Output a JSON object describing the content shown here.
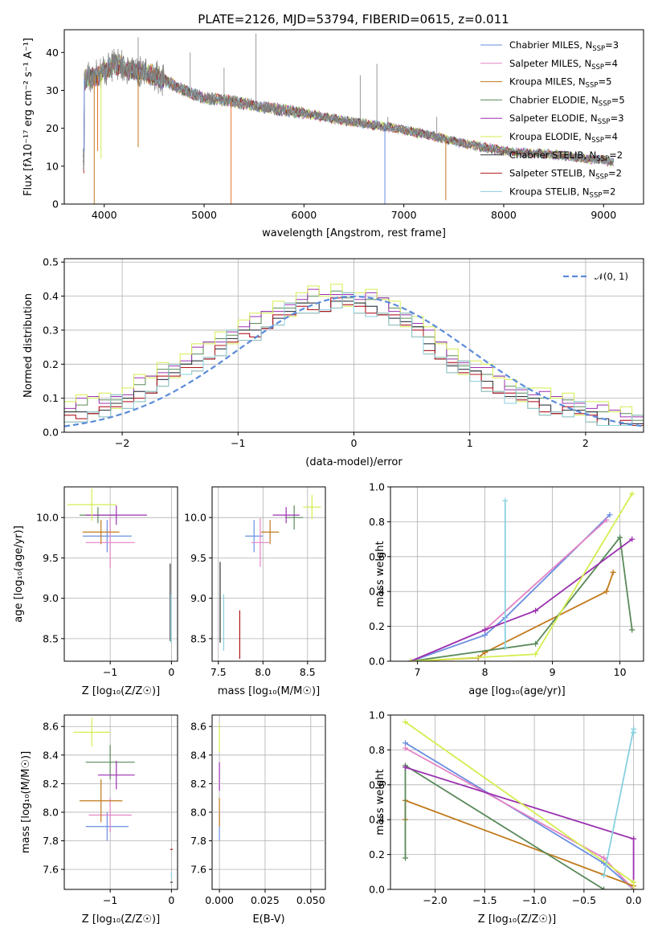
{
  "figure_title": "PLATE=2126, MJD=53794, FIBERID=0615, z=0.011",
  "chart_data": [
    {
      "id": "spectrum",
      "type": "line",
      "xlabel": "wavelength [Angstrom, rest frame]",
      "ylabel": "Flux [fλ10⁻¹⁷ erg cm⁻² s⁻¹ A⁻¹]",
      "xlim": [
        3600,
        9400
      ],
      "ylim": [
        0,
        46
      ],
      "xticks": [
        4000,
        5000,
        6000,
        7000,
        8000,
        9000
      ],
      "yticks": [
        0,
        10,
        20,
        30,
        40
      ],
      "legend_position": "top-right",
      "legend": [
        {
          "label": "Chabrier MILES, N",
          "sub": "SSP",
          "tail": "=3",
          "color": "#6a8fe0"
        },
        {
          "label": "Salpeter MILES, N",
          "sub": "SSP",
          "tail": "=4",
          "color": "#e483c5"
        },
        {
          "label": "Kroupa MILES, N",
          "sub": "SSP",
          "tail": "=5",
          "color": "#c07a1c"
        },
        {
          "label": "Chabrier ELODIE, N",
          "sub": "SSP",
          "tail": "=5",
          "color": "#5a8a5a"
        },
        {
          "label": "Salpeter ELODIE, N",
          "sub": "SSP",
          "tail": "=3",
          "color": "#9b30b0"
        },
        {
          "label": "Kroupa ELODIE, N",
          "sub": "SSP",
          "tail": "=4",
          "color": "#d4ee50"
        },
        {
          "label": "Chabrier STELIB, N",
          "sub": "SSP",
          "tail": "=2",
          "color": "#333333"
        },
        {
          "label": "Salpeter STELIB, N",
          "sub": "SSP",
          "tail": "=2",
          "color": "#b01515"
        },
        {
          "label": "Kroupa STELIB, N",
          "sub": "SSP",
          "tail": "=2",
          "color": "#88d0e0"
        }
      ],
      "continuum": [
        [
          3800,
          33
        ],
        [
          3950,
          34
        ],
        [
          4100,
          37
        ],
        [
          4300,
          35
        ],
        [
          4500,
          34
        ],
        [
          4800,
          30
        ],
        [
          5000,
          28
        ],
        [
          5300,
          27
        ],
        [
          5600,
          25.5
        ],
        [
          6000,
          24
        ],
        [
          6400,
          22
        ],
        [
          6800,
          20.5
        ],
        [
          7200,
          18.5
        ],
        [
          7600,
          16
        ],
        [
          8000,
          14
        ],
        [
          8500,
          13
        ],
        [
          9000,
          11.5
        ],
        [
          9100,
          11
        ]
      ],
      "emission_lines": [
        [
          4340,
          44
        ],
        [
          4861,
          40
        ],
        [
          5200,
          36
        ],
        [
          5520,
          45
        ],
        [
          6563,
          34
        ],
        [
          6730,
          37
        ],
        [
          6840,
          23
        ],
        [
          7330,
          23
        ]
      ],
      "absorption_lines": [
        [
          3800,
          14
        ],
        [
          3900,
          0
        ],
        [
          3934,
          14
        ],
        [
          3968,
          12
        ],
        [
          4340,
          15
        ],
        [
          5270,
          0
        ],
        [
          6810,
          0
        ],
        [
          7420,
          1
        ]
      ]
    },
    {
      "id": "residuals",
      "type": "line",
      "xlabel": "(data-model)/error",
      "ylabel": "Normed distribution",
      "xlim": [
        -2.5,
        2.5
      ],
      "ylim": [
        0,
        0.51
      ],
      "xticks": [
        -2,
        -1,
        0,
        1,
        2
      ],
      "yticks": [
        0.0,
        0.1,
        0.2,
        0.3,
        0.4,
        0.5
      ],
      "legend_position": "top-right",
      "gaussian_label": "𝒩(0, 1)",
      "gaussian": {
        "mu": 0,
        "sigma": 1,
        "color": "#5b8bd9"
      },
      "hist_x": [
        -2.5,
        -2.4,
        -2.3,
        -2.2,
        -2.1,
        -2.0,
        -1.9,
        -1.8,
        -1.7,
        -1.6,
        -1.5,
        -1.4,
        -1.3,
        -1.2,
        -1.1,
        -1.0,
        -0.9,
        -0.8,
        -0.7,
        -0.6,
        -0.5,
        -0.4,
        -0.3,
        -0.2,
        -0.1,
        0.0,
        0.1,
        0.2,
        0.3,
        0.4,
        0.5,
        0.6,
        0.7,
        0.8,
        0.9,
        1.0,
        1.1,
        1.2,
        1.3,
        1.4,
        1.5,
        1.6,
        1.7,
        1.8,
        1.9,
        2.0,
        2.1,
        2.2,
        2.3,
        2.4
      ],
      "hist_base": [
        0.06,
        0.07,
        0.08,
        0.08,
        0.09,
        0.1,
        0.13,
        0.14,
        0.17,
        0.18,
        0.2,
        0.22,
        0.24,
        0.26,
        0.28,
        0.3,
        0.31,
        0.33,
        0.35,
        0.36,
        0.38,
        0.39,
        0.38,
        0.4,
        0.39,
        0.38,
        0.38,
        0.37,
        0.35,
        0.33,
        0.31,
        0.27,
        0.24,
        0.21,
        0.19,
        0.18,
        0.16,
        0.14,
        0.12,
        0.11,
        0.1,
        0.09,
        0.08,
        0.08,
        0.07,
        0.06,
        0.05,
        0.04,
        0.04,
        0.03
      ],
      "hist_colors": [
        "#6a8fe0",
        "#e483c5",
        "#c07a1c",
        "#5a8a5a",
        "#9b30b0",
        "#d4ee50",
        "#333333",
        "#b01515",
        "#88d0e0"
      ]
    },
    {
      "id": "age_vs_Z",
      "type": "scatter",
      "xlabel": "Z [log₁₀(Z/Z☉)]",
      "ylabel": "age  [log₁₀(age/yr)]",
      "xlim": [
        -1.75,
        0.1
      ],
      "ylim": [
        8.22,
        10.38
      ],
      "xticks": [
        -1,
        0
      ],
      "yticks": [
        8.5,
        9.0,
        9.5,
        10.0
      ],
      "points": [
        {
          "x": -1.05,
          "y": 9.77,
          "xe": 0.4,
          "ye": 0.2,
          "color": "#6a8fe0"
        },
        {
          "x": -1.0,
          "y": 9.69,
          "xe": 0.4,
          "ye": 0.32,
          "color": "#e483c5"
        },
        {
          "x": -1.15,
          "y": 9.82,
          "xe": 0.3,
          "ye": 0.15,
          "color": "#c07a1c"
        },
        {
          "x": -1.2,
          "y": 10.03,
          "xe": 0.3,
          "ye": 0.1,
          "color": "#5a8a5a"
        },
        {
          "x": -0.9,
          "y": 10.03,
          "xe": 0.5,
          "ye": 0.12,
          "color": "#9b30b0"
        },
        {
          "x": -1.3,
          "y": 10.16,
          "xe": 0.4,
          "ye": 0.2,
          "color": "#d4ee50"
        },
        {
          "x": -0.02,
          "y": 8.95,
          "xe": 0.0,
          "ye": 0.48,
          "color": "#333333"
        },
        {
          "x": -0.01,
          "y": 8.75,
          "xe": 0.0,
          "ye": 0.3,
          "color": "#88d0e0"
        }
      ]
    },
    {
      "id": "age_vs_mass",
      "type": "scatter",
      "xlabel": "mass [log₁₀(M/M☉)]",
      "ylabel": "",
      "xlim": [
        7.43,
        8.7
      ],
      "ylim": [
        8.22,
        10.38
      ],
      "xticks": [
        7.5,
        8.0,
        8.5
      ],
      "yticks": [
        8.5,
        9.0,
        9.5,
        10.0
      ],
      "points": [
        {
          "x": 7.9,
          "y": 9.77,
          "xe": 0.1,
          "ye": 0.2,
          "color": "#6a8fe0"
        },
        {
          "x": 7.97,
          "y": 9.69,
          "xe": 0.1,
          "ye": 0.3,
          "color": "#e483c5"
        },
        {
          "x": 8.08,
          "y": 9.82,
          "xe": 0.1,
          "ye": 0.15,
          "color": "#c07a1c"
        },
        {
          "x": 8.35,
          "y": 10.0,
          "xe": 0.1,
          "ye": 0.15,
          "color": "#5a8a5a"
        },
        {
          "x": 8.26,
          "y": 10.03,
          "xe": 0.15,
          "ye": 0.1,
          "color": "#9b30b0"
        },
        {
          "x": 8.55,
          "y": 10.13,
          "xe": 0.1,
          "ye": 0.15,
          "color": "#d4ee50"
        },
        {
          "x": 7.52,
          "y": 8.95,
          "xe": 0.0,
          "ye": 0.5,
          "color": "#333333"
        },
        {
          "x": 7.74,
          "y": 8.55,
          "xe": 0.0,
          "ye": 0.3,
          "color": "#b01515"
        },
        {
          "x": 7.56,
          "y": 8.7,
          "xe": 0.0,
          "ye": 0.35,
          "color": "#88d0e0"
        }
      ]
    },
    {
      "id": "weight_vs_age",
      "type": "line",
      "xlabel": "age  [log₁₀(age/yr)]",
      "ylabel": "mass weight",
      "xlim": [
        6.6,
        10.35
      ],
      "ylim": [
        0,
        1.0
      ],
      "xticks": [
        7,
        8,
        9,
        10
      ],
      "yticks": [
        0.0,
        0.2,
        0.4,
        0.6,
        0.8,
        1.0
      ],
      "series": [
        {
          "color": "#6a8fe0",
          "x": [
            6.9,
            8.0,
            8.3,
            9.85
          ],
          "y": [
            0.0,
            0.15,
            0.25,
            0.84
          ]
        },
        {
          "color": "#e483c5",
          "x": [
            6.9,
            8.0,
            9.8
          ],
          "y": [
            0.0,
            0.18,
            0.81
          ]
        },
        {
          "color": "#c07a1c",
          "x": [
            6.9,
            7.9,
            8.0,
            9.8,
            9.9
          ],
          "y": [
            0.0,
            0.02,
            0.05,
            0.4,
            0.51
          ]
        },
        {
          "color": "#5a8a5a",
          "x": [
            6.9,
            8.75,
            10.0,
            10.18
          ],
          "y": [
            0.0,
            0.1,
            0.71,
            0.18
          ]
        },
        {
          "color": "#9b30b0",
          "x": [
            6.9,
            8.0,
            8.75,
            10.18
          ],
          "y": [
            0.0,
            0.18,
            0.29,
            0.7
          ]
        },
        {
          "color": "#d4ee50",
          "x": [
            6.9,
            8.75,
            10.18
          ],
          "y": [
            0.0,
            0.04,
            0.96
          ]
        },
        {
          "color": "#88d0e0",
          "x": [
            8.3,
            8.3
          ],
          "y": [
            0.08,
            0.92
          ]
        }
      ]
    },
    {
      "id": "mass_vs_Z",
      "type": "scatter",
      "xlabel": "Z [log₁₀(Z/Z☉)]",
      "ylabel": "mass [log₁₀(M/M☉)]",
      "xlim": [
        -1.75,
        0.1
      ],
      "ylim": [
        7.46,
        8.68
      ],
      "xticks": [
        -1,
        0
      ],
      "yticks": [
        7.6,
        7.8,
        8.0,
        8.2,
        8.4,
        8.6
      ],
      "points": [
        {
          "x": -1.05,
          "y": 7.9,
          "xe": 0.35,
          "ye": 0.1,
          "color": "#6a8fe0"
        },
        {
          "x": -1.0,
          "y": 7.98,
          "xe": 0.35,
          "ye": 0.12,
          "color": "#e483c5"
        },
        {
          "x": -1.15,
          "y": 8.08,
          "xe": 0.35,
          "ye": 0.15,
          "color": "#c07a1c"
        },
        {
          "x": -1.0,
          "y": 8.35,
          "xe": 0.4,
          "ye": 0.12,
          "color": "#5a8a5a"
        },
        {
          "x": -0.9,
          "y": 8.26,
          "xe": 0.3,
          "ye": 0.1,
          "color": "#9b30b0"
        },
        {
          "x": -1.3,
          "y": 8.56,
          "xe": 0.3,
          "ye": 0.1,
          "color": "#d4ee50"
        },
        {
          "x": 0.0,
          "y": 7.51,
          "xe": 0.0,
          "ye": 0.0,
          "color": "#333333"
        },
        {
          "x": 0.0,
          "y": 7.74,
          "xe": 0.0,
          "ye": 0.0,
          "color": "#b01515"
        },
        {
          "x": 0.0,
          "y": 7.56,
          "xe": 0.0,
          "ye": 0.02,
          "color": "#88d0e0"
        }
      ]
    },
    {
      "id": "mass_vs_ebv",
      "type": "scatter",
      "xlabel": "E(B-V)",
      "ylabel": "",
      "xlim": [
        -0.004,
        0.058
      ],
      "ylim": [
        7.46,
        8.68
      ],
      "xticks": [
        "0.000",
        "0.025",
        "0.050"
      ],
      "points": [
        {
          "x": 0.0,
          "y": 7.9,
          "xe": 0.0,
          "ye": 0.1,
          "color": "#6a8fe0"
        },
        {
          "x": 0.0,
          "y": 8.0,
          "xe": 0.0,
          "ye": 0.1,
          "color": "#c07a1c"
        },
        {
          "x": 0.0,
          "y": 8.25,
          "xe": 0.0,
          "ye": 0.1,
          "color": "#9b30b0"
        },
        {
          "x": 0.0,
          "y": 8.52,
          "xe": 0.0,
          "ye": 0.1,
          "color": "#d4ee50"
        }
      ]
    },
    {
      "id": "weight_vs_Z",
      "type": "line",
      "xlabel": "Z [log₁₀(Z/Z☉)]",
      "ylabel": "mass weight",
      "xlim": [
        -2.45,
        0.1
      ],
      "ylim": [
        0,
        1.0
      ],
      "xticks": [
        -2.0,
        -1.5,
        -1.0,
        -0.5,
        0.0
      ],
      "yticks": [
        0.0,
        0.2,
        0.4,
        0.6,
        0.8,
        1.0
      ],
      "series": [
        {
          "color": "#6a8fe0",
          "x": [
            -2.3,
            -0.3,
            0.0
          ],
          "y": [
            0.84,
            0.15,
            0.0
          ]
        },
        {
          "color": "#e483c5",
          "x": [
            -2.3,
            -0.3,
            0.0
          ],
          "y": [
            0.81,
            0.18,
            0.0
          ]
        },
        {
          "color": "#c07a1c",
          "x": [
            -2.3,
            -2.3,
            0.0
          ],
          "y": [
            0.4,
            0.51,
            0.02
          ]
        },
        {
          "color": "#5a8a5a",
          "x": [
            -2.3,
            -2.3,
            -0.3
          ],
          "y": [
            0.18,
            0.71,
            0.0
          ]
        },
        {
          "color": "#9b30b0",
          "x": [
            -2.3,
            0.0,
            0.0
          ],
          "y": [
            0.7,
            0.29,
            0.0
          ]
        },
        {
          "color": "#d4ee50",
          "x": [
            -2.3,
            0.0,
            0.0
          ],
          "y": [
            0.96,
            0.04,
            0.0
          ]
        },
        {
          "color": "#88d0e0",
          "x": [
            -0.3,
            0.0,
            0.0
          ],
          "y": [
            0.08,
            0.92,
            0.9
          ]
        }
      ]
    }
  ]
}
